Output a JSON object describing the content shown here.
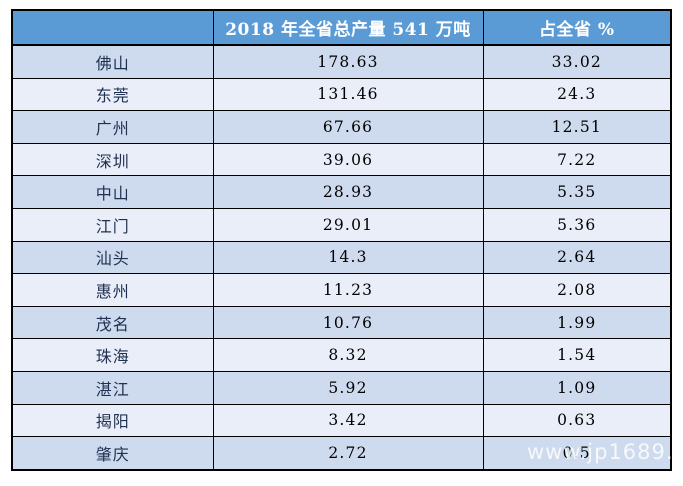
{
  "chart_data": {
    "type": "table",
    "columns": [
      "",
      "2018 年全省总产量 541 万吨",
      "占全省 %"
    ],
    "rows": [
      {
        "city": "佛山",
        "production": "178.63",
        "share": "33.02"
      },
      {
        "city": "东莞",
        "production": "131.46",
        "share": "24.3"
      },
      {
        "city": "广州",
        "production": "67.66",
        "share": "12.51"
      },
      {
        "city": "深圳",
        "production": "39.06",
        "share": "7.22"
      },
      {
        "city": "中山",
        "production": "28.93",
        "share": "5.35"
      },
      {
        "city": "江门",
        "production": "29.01",
        "share": "5.36"
      },
      {
        "city": "汕头",
        "production": "14.3",
        "share": "2.64"
      },
      {
        "city": "惠州",
        "production": "11.23",
        "share": "2.08"
      },
      {
        "city": "茂名",
        "production": "10.76",
        "share": "1.99"
      },
      {
        "city": "珠海",
        "production": "8.32",
        "share": "1.54"
      },
      {
        "city": "湛江",
        "production": "5.92",
        "share": "1.09"
      },
      {
        "city": "揭阳",
        "production": "3.42",
        "share": "0.63"
      },
      {
        "city": "肇庆",
        "production": "2.72",
        "share": "0.5"
      }
    ]
  },
  "header": {
    "blank": "",
    "production_label": "2018 年全省总产量 541 万吨",
    "share_label": "占全省 %"
  },
  "watermark": "www.jp1689.com",
  "colors": {
    "header_bg": "#5b9bd5",
    "header_text": "#ffffff",
    "row_odd_bg": "#cedaed",
    "row_even_bg": "#e9eef8",
    "border": "#000000",
    "city_text": "#1f3050",
    "number_text": "#000000"
  }
}
